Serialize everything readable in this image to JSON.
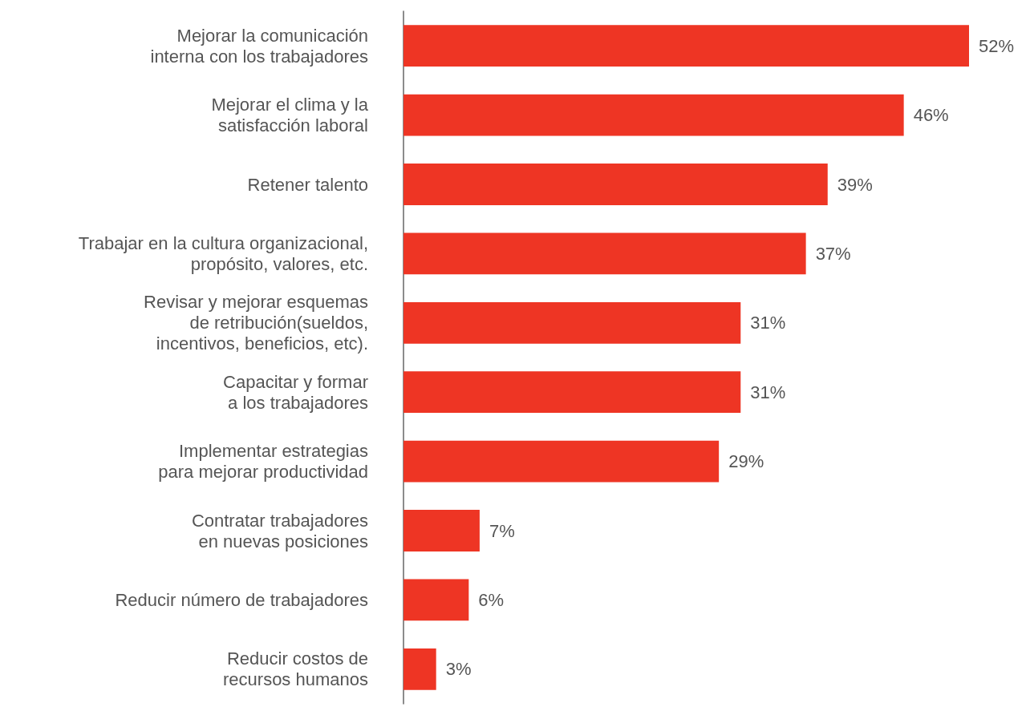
{
  "chart_data": {
    "type": "bar",
    "orientation": "horizontal",
    "categories": [
      "Mejorar la comunicación\ninterna con los trabajadores",
      "Mejorar el clima y la\nsatisfacción laboral",
      "Retener talento",
      "Trabajar en la cultura organizacional,\npropósito, valores, etc.",
      "Revisar y mejorar esquemas\nde retribución(sueldos,\nincentivos, beneficios, etc).",
      "Capacitar y formar\na los trabajadores",
      "Implementar estrategias\npara mejorar productividad",
      "Contratar trabajadores\nen nuevas posiciones",
      "Reducir número de trabajadores",
      "Reducir costos de\nrecursos humanos"
    ],
    "values": [
      52,
      46,
      39,
      37,
      31,
      31,
      29,
      7,
      6,
      3
    ],
    "value_labels": [
      "52%",
      "46%",
      "39%",
      "37%",
      "31%",
      "31%",
      "29%",
      "7%",
      "6%",
      "3%"
    ],
    "color": "#ee3524"
  }
}
